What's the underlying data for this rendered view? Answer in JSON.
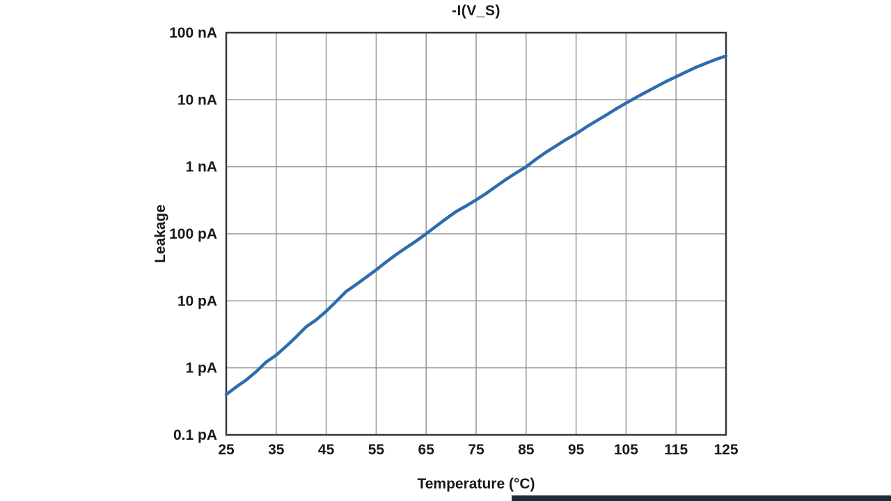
{
  "chart_data": {
    "type": "line",
    "title": "-I(V_S)",
    "xlabel": "Temperature (°C)",
    "ylabel": "Leakage",
    "grid": true,
    "legend": "none",
    "xlim": [
      25,
      125
    ],
    "ylim_pA": [
      0.1,
      100000
    ],
    "x_ticks": [
      25,
      35,
      45,
      55,
      65,
      75,
      85,
      95,
      105,
      115,
      125
    ],
    "y_ticks": [
      {
        "label": "0.1 pA",
        "pA": 0.1
      },
      {
        "label": "1 pA",
        "pA": 1
      },
      {
        "label": "10 pA",
        "pA": 10
      },
      {
        "label": "100 pA",
        "pA": 100
      },
      {
        "label": "1 nA",
        "pA": 1000
      },
      {
        "label": "10 nA",
        "pA": 10000
      },
      {
        "label": "100 nA",
        "pA": 100000
      }
    ],
    "line_color": "#2d6cae",
    "grid_color": "#949699",
    "axis_color": "#35383c",
    "series": [
      {
        "name": "-I(V_S)",
        "points_temp_pA": [
          [
            25,
            0.4
          ],
          [
            27,
            0.52
          ],
          [
            29,
            0.66
          ],
          [
            31,
            0.88
          ],
          [
            33,
            1.22
          ],
          [
            35,
            1.55
          ],
          [
            37,
            2.1
          ],
          [
            39,
            2.9
          ],
          [
            41,
            4.1
          ],
          [
            43,
            5.2
          ],
          [
            45,
            7.0
          ],
          [
            47,
            9.8
          ],
          [
            49,
            13.8
          ],
          [
            51,
            17.5
          ],
          [
            53,
            22.5
          ],
          [
            55,
            29
          ],
          [
            57,
            38
          ],
          [
            59,
            49
          ],
          [
            61,
            62
          ],
          [
            63,
            78
          ],
          [
            65,
            100
          ],
          [
            67,
            130
          ],
          [
            69,
            168
          ],
          [
            71,
            215
          ],
          [
            73,
            260
          ],
          [
            75,
            320
          ],
          [
            77,
            400
          ],
          [
            79,
            510
          ],
          [
            81,
            650
          ],
          [
            83,
            810
          ],
          [
            85,
            1000
          ],
          [
            87,
            1300
          ],
          [
            89,
            1650
          ],
          [
            91,
            2050
          ],
          [
            93,
            2550
          ],
          [
            95,
            3100
          ],
          [
            97,
            3900
          ],
          [
            99,
            4800
          ],
          [
            101,
            5900
          ],
          [
            103,
            7300
          ],
          [
            105,
            8900
          ],
          [
            107,
            10800
          ],
          [
            109,
            13000
          ],
          [
            111,
            15600
          ],
          [
            113,
            18700
          ],
          [
            115,
            22000
          ],
          [
            117,
            26000
          ],
          [
            119,
            30500
          ],
          [
            121,
            35000
          ],
          [
            123,
            40000
          ],
          [
            125,
            45000
          ]
        ]
      }
    ]
  },
  "footer_bar_color": "#1d2a38"
}
